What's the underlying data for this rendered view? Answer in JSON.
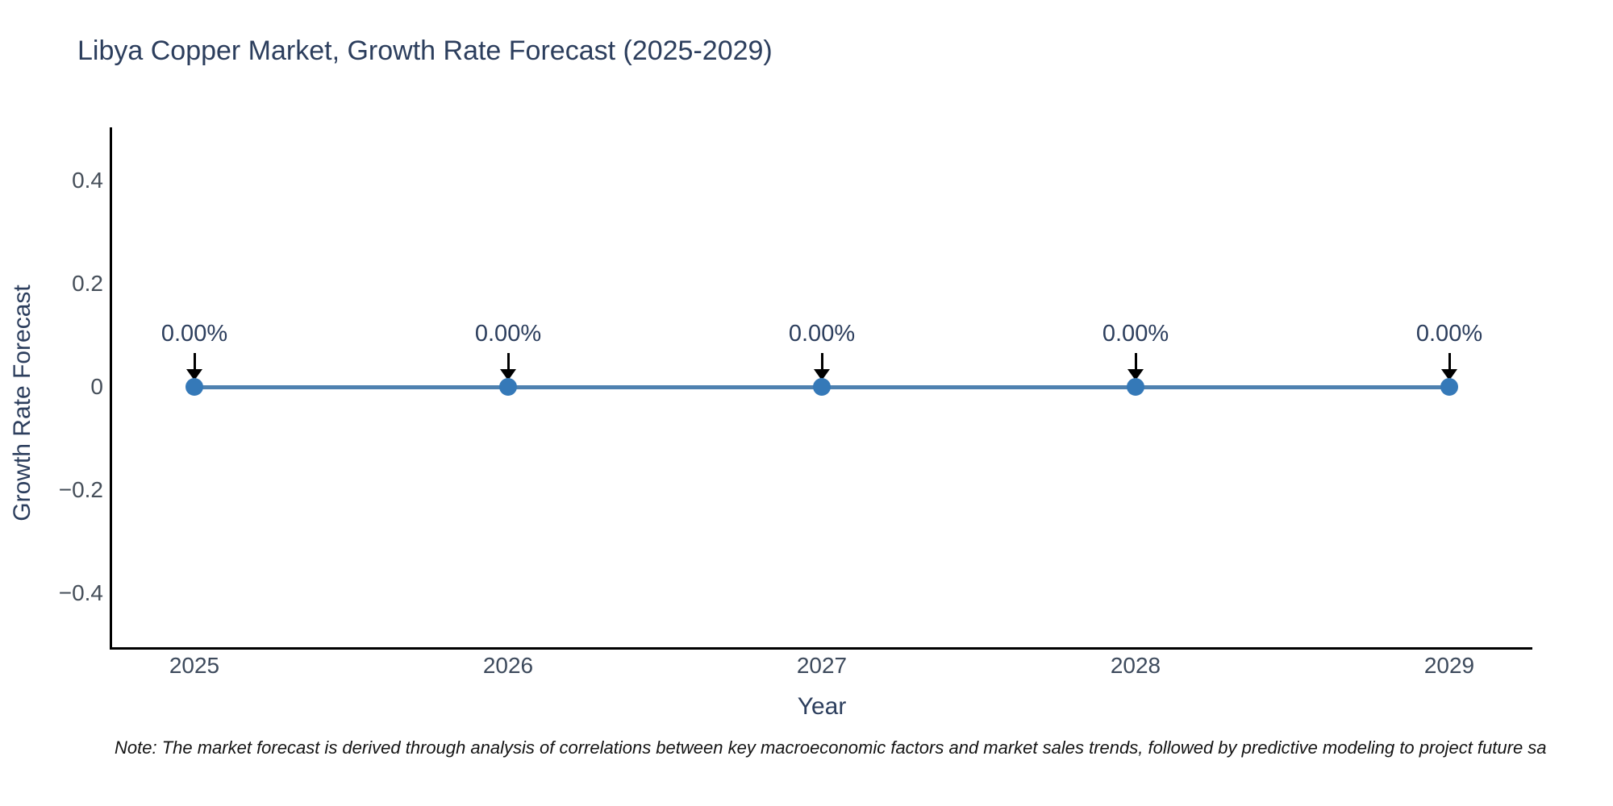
{
  "title": "Libya Copper Market, Growth Rate Forecast (2025-2029)",
  "note": "Note: The market forecast is derived through analysis of correlations between key macroeconomic factors and market sales trends, followed by predictive modeling to project future sa",
  "chart_data": {
    "type": "line",
    "title": "Libya Copper Market, Growth Rate Forecast (2025-2029)",
    "xlabel": "Year",
    "ylabel": "Growth Rate Forecast",
    "categories": [
      "2025",
      "2026",
      "2027",
      "2028",
      "2029"
    ],
    "series": [
      {
        "name": "Growth Rate Forecast",
        "values": [
          0,
          0,
          0,
          0,
          0
        ]
      }
    ],
    "point_labels": [
      "0.00%",
      "0.00%",
      "0.00%",
      "0.00%",
      "0.00%"
    ],
    "y_ticks": [
      "0.4",
      "0.2",
      "0",
      "−0.2",
      "−0.4"
    ],
    "y_tick_values": [
      0.4,
      0.2,
      0,
      -0.2,
      -0.4
    ],
    "ylim": [
      -0.5,
      0.5
    ],
    "grid": false,
    "legend_position": "none",
    "annotation_arrow": "down-arrow",
    "colors": {
      "line": "#4e81b0",
      "marker": "#3579b8",
      "arrow": "#000000",
      "axis_line": "#000000",
      "title_text": "#2c3e5d",
      "tick_text": "#454e59",
      "note_text": "#141414"
    }
  }
}
